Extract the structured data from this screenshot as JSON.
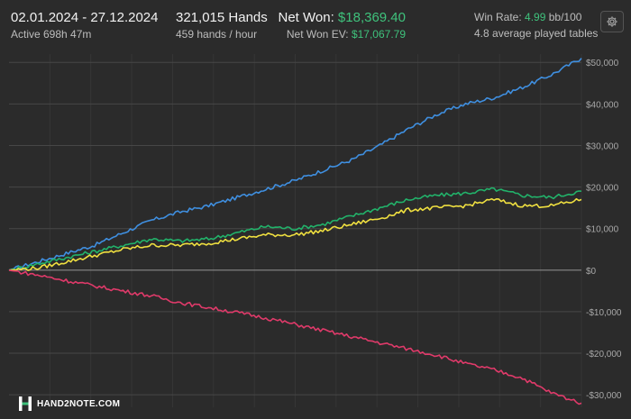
{
  "header": {
    "date_range": "02.01.2024 - 27.12.2024",
    "active_time": "Active 698h 47m",
    "hands": "321,015 Hands",
    "hands_per_hour": "459 hands / hour",
    "net_won_label": "Net Won:",
    "net_won_value": "$18,369.40",
    "net_won_ev_label": "Net Won  EV:",
    "net_won_ev_value": "$17,067.79",
    "win_rate_label": "Win Rate:",
    "win_rate_value": "4.99",
    "win_rate_unit": "bb/100",
    "tables": "4.8 average played tables",
    "settings_icon": "gear-icon"
  },
  "logo": {
    "text": "HAND2NOTE.COM",
    "icon": "hand2note-logo-icon"
  },
  "chart_data": {
    "type": "line",
    "title": "",
    "xlabel": "",
    "ylabel": "",
    "x_range": [
      0,
      321015
    ],
    "ylim": [
      -33000,
      52000
    ],
    "y_ticks": [
      50000,
      40000,
      30000,
      20000,
      10000,
      0,
      -10000,
      -20000,
      -30000
    ],
    "y_tick_labels": [
      "$50,000",
      "$40,000",
      "$30,000",
      "$20,000",
      "$10,000",
      "$0",
      "-$10,000",
      "-$20,000",
      "-$30,000"
    ],
    "y_axis_position": "right",
    "grid": true,
    "legend": "none",
    "series": [
      {
        "color": "#3f8fe0",
        "x": [
          0,
          16000,
          32000,
          48000,
          64000,
          80000,
          96000,
          112000,
          128000,
          144000,
          160000,
          176000,
          192000,
          208000,
          224000,
          240000,
          256000,
          272000,
          288000,
          304000,
          321015
        ],
        "values": [
          0,
          2000,
          4000,
          6000,
          9000,
          12000,
          14000,
          15500,
          17500,
          19500,
          21500,
          24000,
          26500,
          30000,
          34000,
          37500,
          40000,
          41500,
          44000,
          47000,
          51000
        ]
      },
      {
        "color": "#22b26a",
        "x": [
          0,
          16000,
          32000,
          48000,
          64000,
          80000,
          96000,
          112000,
          128000,
          144000,
          160000,
          176000,
          192000,
          208000,
          224000,
          240000,
          256000,
          272000,
          288000,
          304000,
          321015
        ],
        "values": [
          0,
          1500,
          3000,
          4500,
          6000,
          7500,
          7000,
          7500,
          9000,
          10500,
          10000,
          11000,
          13000,
          15000,
          17000,
          18000,
          18500,
          19500,
          18000,
          17500,
          19000
        ]
      },
      {
        "color": "#f0e040",
        "x": [
          0,
          16000,
          32000,
          48000,
          64000,
          80000,
          96000,
          112000,
          128000,
          144000,
          160000,
          176000,
          192000,
          208000,
          224000,
          240000,
          256000,
          272000,
          288000,
          304000,
          321015
        ],
        "values": [
          0,
          500,
          2000,
          3500,
          5000,
          6000,
          6000,
          6500,
          7500,
          8500,
          8500,
          9500,
          11000,
          12500,
          14500,
          15000,
          15500,
          17000,
          15500,
          15500,
          17000
        ]
      },
      {
        "color": "#e03a6a",
        "x": [
          0,
          16000,
          32000,
          48000,
          64000,
          80000,
          96000,
          112000,
          128000,
          144000,
          160000,
          176000,
          192000,
          208000,
          224000,
          240000,
          256000,
          272000,
          288000,
          304000,
          321015
        ],
        "values": [
          0,
          -1200,
          -2500,
          -3800,
          -5000,
          -6200,
          -7800,
          -9000,
          -10200,
          -11500,
          -13000,
          -14500,
          -16000,
          -17500,
          -19000,
          -20500,
          -22500,
          -24000,
          -26000,
          -29500,
          -32000
        ]
      }
    ]
  }
}
